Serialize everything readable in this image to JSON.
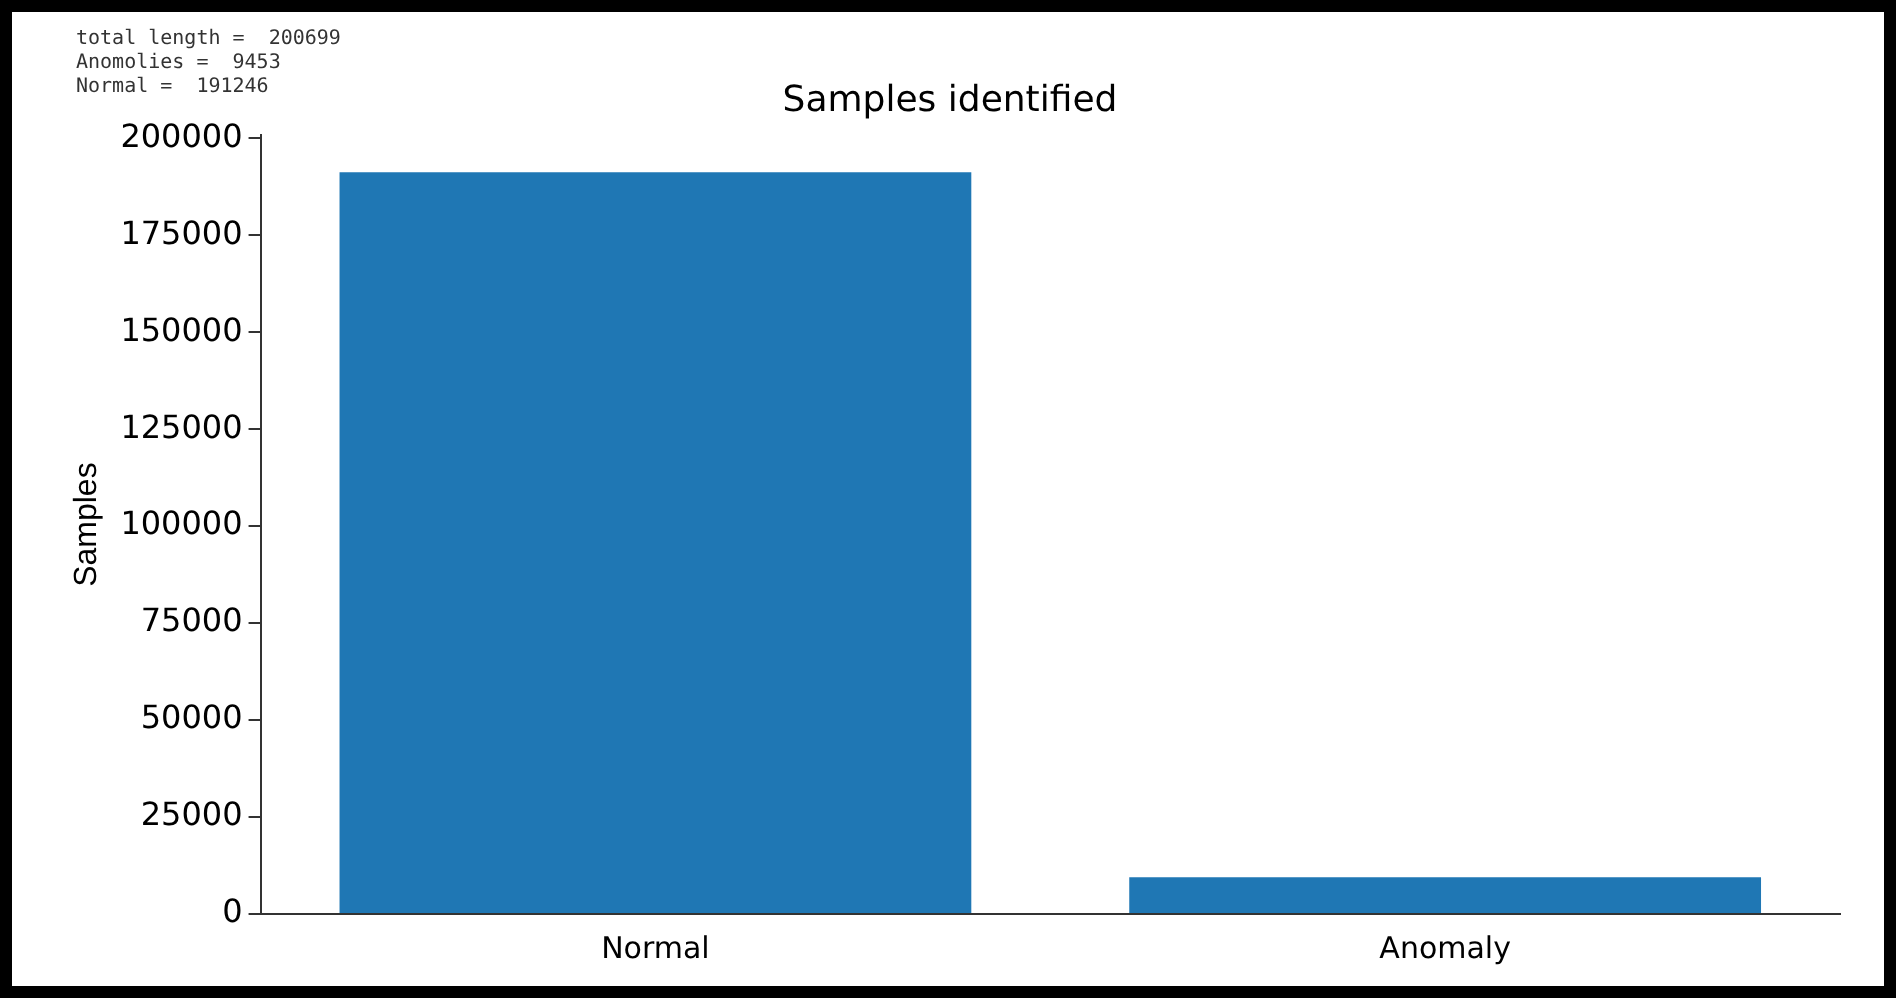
{
  "chart_data": {
    "type": "bar",
    "title": "Samples identified",
    "ylabel": "Samples",
    "categories": [
      "Normal",
      "Anomaly"
    ],
    "values": [
      191246,
      9453
    ],
    "color": "#1f77b4",
    "ylim": [
      0,
      200800
    ],
    "yticks": [
      0,
      25000,
      50000,
      75000,
      100000,
      125000,
      150000,
      175000,
      200000
    ],
    "grid": false,
    "legend": false,
    "annotations": [
      "total length =  200699",
      "Anomolies =  9453",
      "Normal =  191246"
    ]
  }
}
